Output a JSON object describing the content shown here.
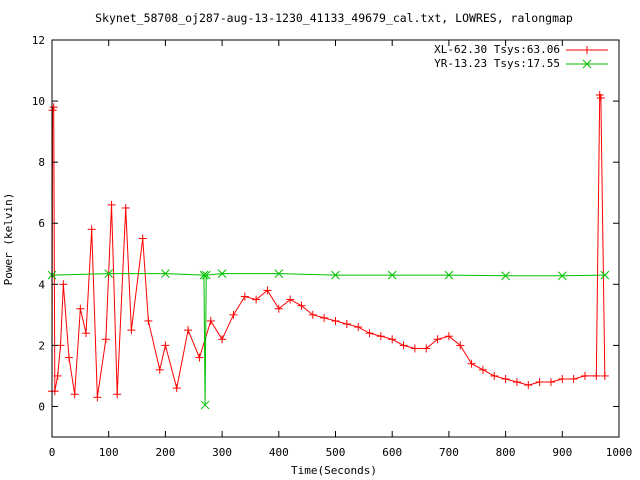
{
  "chart_data": {
    "type": "scatter",
    "title": "Skynet_58708_oj287-aug-13-1230_41133_49679_cal.txt, LOWRES, ralongmap",
    "xlabel": "Time(Seconds)",
    "ylabel": "Power (kelvin)",
    "xlim": [
      0,
      1000
    ],
    "ylim": [
      -1,
      12
    ],
    "xticks": [
      "0",
      "100",
      "200",
      "300",
      "400",
      "500",
      "600",
      "700",
      "800",
      "900",
      "1000"
    ],
    "yticks": [
      "0",
      "2",
      "4",
      "6",
      "8",
      "10",
      "12"
    ],
    "grid": false,
    "legend_position": "top-right",
    "series": [
      {
        "name": "XL-62.30 Tsys:63.06",
        "color": "#ff0000",
        "marker": "plus",
        "description_points": [
          [
            0,
            0.5
          ],
          [
            1,
            9.7
          ],
          [
            3,
            9.8
          ],
          [
            5,
            0.5
          ],
          [
            10,
            1.0
          ],
          [
            15,
            2.0
          ],
          [
            20,
            4.0
          ],
          [
            30,
            1.6
          ],
          [
            40,
            0.4
          ],
          [
            50,
            3.2
          ],
          [
            60,
            2.4
          ],
          [
            70,
            5.8
          ],
          [
            80,
            0.3
          ],
          [
            95,
            2.2
          ],
          [
            105,
            6.6
          ],
          [
            115,
            0.4
          ],
          [
            130,
            6.5
          ],
          [
            140,
            2.5
          ],
          [
            160,
            5.5
          ],
          [
            170,
            2.8
          ],
          [
            190,
            1.2
          ],
          [
            200,
            2.0
          ],
          [
            220,
            0.6
          ],
          [
            240,
            2.5
          ],
          [
            260,
            1.6
          ],
          [
            280,
            2.8
          ],
          [
            300,
            2.2
          ],
          [
            320,
            3.0
          ],
          [
            340,
            3.6
          ],
          [
            360,
            3.5
          ],
          [
            380,
            3.8
          ],
          [
            400,
            3.2
          ],
          [
            420,
            3.5
          ],
          [
            440,
            3.3
          ],
          [
            460,
            3.0
          ],
          [
            480,
            2.9
          ],
          [
            500,
            2.8
          ],
          [
            520,
            2.7
          ],
          [
            540,
            2.6
          ],
          [
            560,
            2.4
          ],
          [
            580,
            2.3
          ],
          [
            600,
            2.2
          ],
          [
            620,
            2.0
          ],
          [
            640,
            1.9
          ],
          [
            660,
            1.9
          ],
          [
            680,
            2.2
          ],
          [
            700,
            2.3
          ],
          [
            720,
            2.0
          ],
          [
            740,
            1.4
          ],
          [
            760,
            1.2
          ],
          [
            780,
            1.0
          ],
          [
            800,
            0.9
          ],
          [
            820,
            0.8
          ],
          [
            840,
            0.7
          ],
          [
            860,
            0.8
          ],
          [
            880,
            0.8
          ],
          [
            900,
            0.9
          ],
          [
            920,
            0.9
          ],
          [
            940,
            1.0
          ],
          [
            960,
            1.0
          ],
          [
            966,
            10.2
          ],
          [
            968,
            10.1
          ],
          [
            975,
            1.0
          ]
        ]
      },
      {
        "name": "YR-13.23 Tsys:17.55",
        "color": "#00c000",
        "marker": "cross",
        "description_points": [
          [
            0,
            4.3
          ],
          [
            100,
            4.35
          ],
          [
            200,
            4.35
          ],
          [
            268,
            4.3
          ],
          [
            270,
            0.05
          ],
          [
            272,
            4.3
          ],
          [
            300,
            4.35
          ],
          [
            400,
            4.35
          ],
          [
            500,
            4.3
          ],
          [
            600,
            4.3
          ],
          [
            700,
            4.3
          ],
          [
            800,
            4.28
          ],
          [
            900,
            4.28
          ],
          [
            975,
            4.3
          ]
        ]
      }
    ]
  }
}
